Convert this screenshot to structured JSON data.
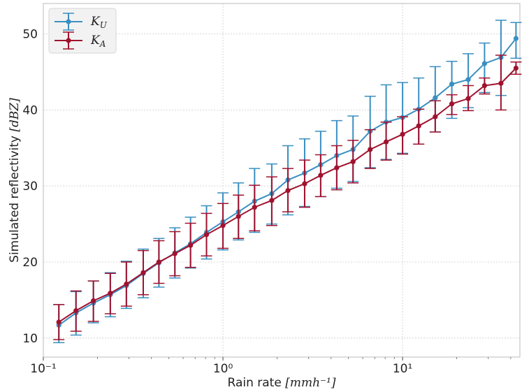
{
  "chart_data": {
    "type": "line",
    "title": "",
    "xlabel_prefix": "Rain rate ",
    "xlabel_unit": "[mmh⁻¹]",
    "ylabel_prefix": "Simulated reflectivity ",
    "ylabel_unit": "[dBZ]",
    "xscale": "log",
    "xlim": [
      0.1,
      45
    ],
    "ylim": [
      7.5,
      54
    ],
    "xticks": [
      {
        "value": 0.1,
        "label": "10⁻¹"
      },
      {
        "value": 1,
        "label": "10⁰"
      },
      {
        "value": 10,
        "label": "10¹"
      }
    ],
    "yticks": [
      10,
      20,
      30,
      40,
      50
    ],
    "grid": true,
    "legend_position": "top-left",
    "x": [
      0.122,
      0.152,
      0.19,
      0.236,
      0.29,
      0.36,
      0.44,
      0.54,
      0.66,
      0.81,
      1.0,
      1.22,
      1.5,
      1.87,
      2.3,
      2.85,
      3.5,
      4.3,
      5.3,
      6.6,
      8.1,
      10.0,
      12.3,
      15.2,
      18.8,
      23.2,
      28.6,
      35.3,
      42.8
    ],
    "series": [
      {
        "name": "K_U",
        "name_main": "K",
        "name_sub": "U",
        "color": "#3a8fc1",
        "values": [
          11.7,
          13.3,
          14.6,
          15.7,
          16.9,
          18.5,
          19.9,
          21.2,
          22.4,
          23.9,
          25.3,
          26.6,
          28.0,
          29.0,
          30.8,
          31.7,
          32.8,
          34.0,
          34.8,
          37.2,
          38.4,
          39.0,
          40.1,
          41.6,
          43.4,
          44.0,
          46.1,
          46.9,
          49.4
        ],
        "lower": [
          9.4,
          10.4,
          12.0,
          12.8,
          13.9,
          15.3,
          16.7,
          17.9,
          19.2,
          20.4,
          21.6,
          22.9,
          23.9,
          25.0,
          26.2,
          27.3,
          28.6,
          29.7,
          30.6,
          32.4,
          33.5,
          34.3,
          35.5,
          37.1,
          38.9,
          40.3,
          42.3,
          41.9,
          46.8
        ],
        "upper": [
          14.4,
          16.1,
          17.5,
          18.6,
          20.1,
          21.7,
          23.1,
          24.5,
          25.9,
          27.4,
          29.1,
          30.4,
          32.3,
          32.9,
          35.3,
          36.2,
          37.2,
          38.6,
          39.2,
          41.8,
          43.3,
          43.6,
          44.2,
          45.7,
          46.4,
          47.4,
          48.8,
          51.8,
          51.5
        ]
      },
      {
        "name": "K_A",
        "name_main": "K",
        "name_sub": "A",
        "color": "#a0122e",
        "values": [
          12.1,
          13.6,
          14.9,
          15.9,
          17.1,
          18.6,
          20.0,
          21.1,
          22.2,
          23.6,
          24.8,
          26.0,
          27.2,
          28.1,
          29.4,
          30.3,
          31.4,
          32.4,
          33.2,
          34.8,
          35.8,
          36.8,
          37.9,
          39.1,
          40.8,
          41.5,
          43.2,
          43.5,
          45.5
        ],
        "lower": [
          9.8,
          10.9,
          12.2,
          13.2,
          14.2,
          15.7,
          17.2,
          18.2,
          19.3,
          20.8,
          21.8,
          23.1,
          24.1,
          24.8,
          26.6,
          27.2,
          28.6,
          29.5,
          30.4,
          32.3,
          33.4,
          34.2,
          35.5,
          37.1,
          39.4,
          39.9,
          42.1,
          40.0,
          44.7
        ],
        "upper": [
          14.4,
          16.2,
          17.5,
          18.5,
          20.0,
          21.5,
          22.8,
          24.0,
          25.1,
          26.4,
          27.7,
          28.8,
          30.1,
          31.2,
          32.3,
          33.4,
          34.1,
          35.3,
          36.0,
          37.4,
          38.4,
          39.1,
          40.1,
          41.2,
          42.0,
          43.2,
          44.2,
          47.2,
          46.3
        ]
      }
    ]
  }
}
